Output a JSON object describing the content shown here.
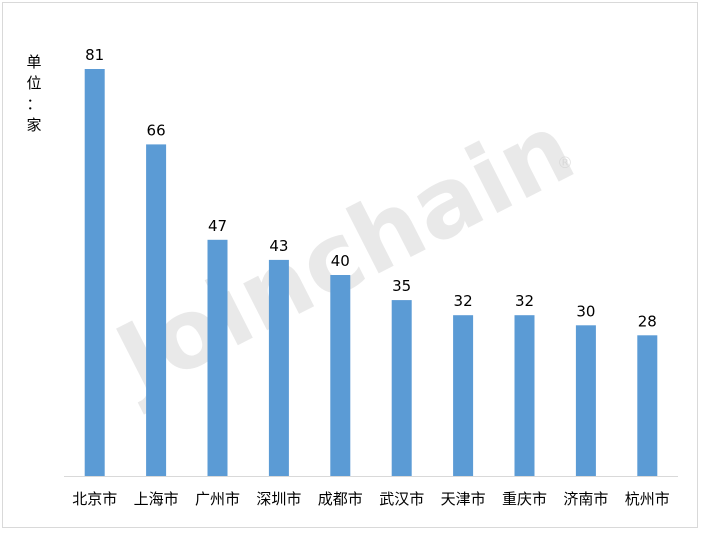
{
  "chart_data": {
    "type": "bar",
    "ylabel": "单位：家",
    "categories": [
      "北京市",
      "上海市",
      "广州市",
      "深圳市",
      "成都市",
      "武汉市",
      "天津市",
      "重庆市",
      "济南市",
      "杭州市"
    ],
    "values": [
      81,
      66,
      47,
      43,
      40,
      35,
      32,
      32,
      30,
      28
    ],
    "ylim": [
      0,
      81
    ],
    "grid": false,
    "bar_color": "#5b9bd5",
    "axis_color": "#d9d9d9"
  },
  "watermark": {
    "text": "Joinchain",
    "mark": "®"
  }
}
